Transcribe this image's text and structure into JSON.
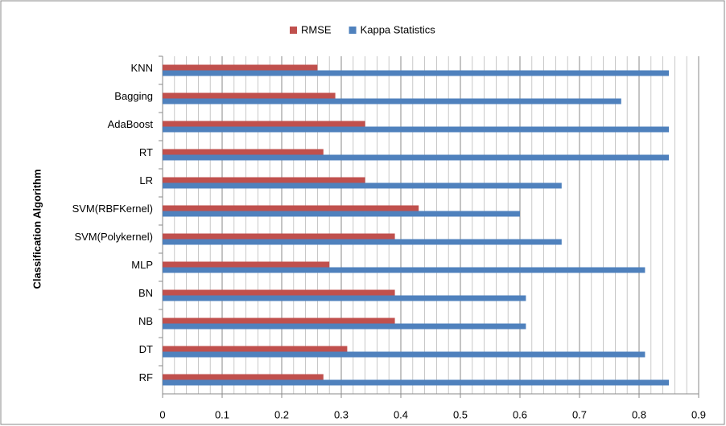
{
  "chart_data": {
    "type": "bar",
    "orientation": "horizontal",
    "y_label": "Classification  Algorithm",
    "categories": [
      "KNN",
      "Bagging",
      "AdaBoost",
      "RT",
      "LR",
      "SVM(RBFKernel)",
      "SVM(Polykernel)",
      "MLP",
      "BN",
      "NB",
      "DT",
      "RF"
    ],
    "series": [
      {
        "name": "RMSE",
        "color": "#c0504d",
        "values": [
          0.26,
          0.29,
          0.34,
          0.27,
          0.34,
          0.43,
          0.39,
          0.28,
          0.39,
          0.39,
          0.31,
          0.27
        ]
      },
      {
        "name": "Kappa Statistics",
        "color": "#4f81bd",
        "values": [
          0.85,
          0.77,
          0.85,
          0.85,
          0.67,
          0.6,
          0.67,
          0.81,
          0.61,
          0.61,
          0.81,
          0.85
        ]
      }
    ],
    "xlim": [
      0,
      0.9
    ],
    "xticks": [
      0,
      0.1,
      0.2,
      0.3,
      0.4,
      0.5,
      0.6,
      0.7,
      0.8,
      0.9
    ],
    "grid": true,
    "legend": "top"
  }
}
